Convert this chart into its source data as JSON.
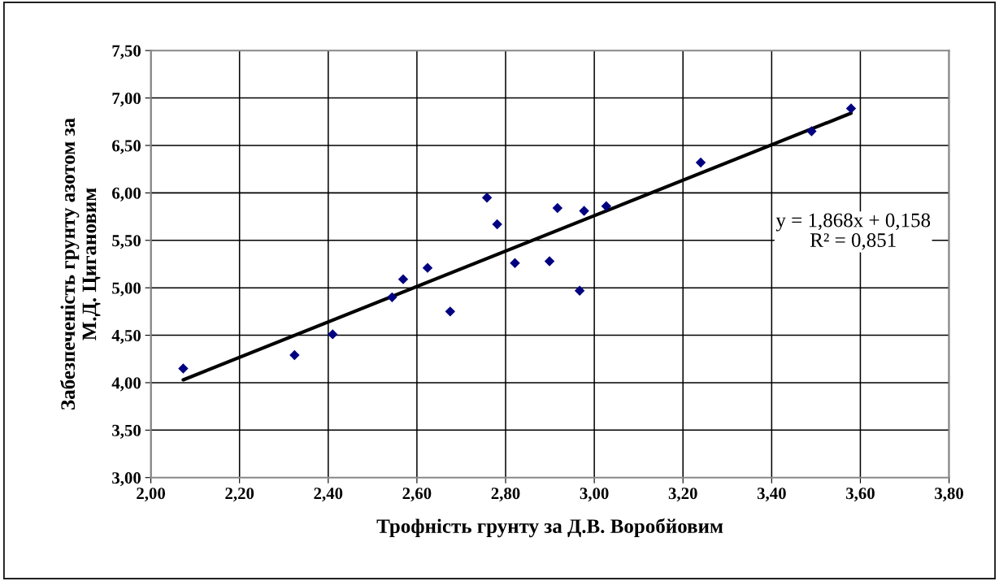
{
  "chart_data": {
    "type": "scatter",
    "xlabel": "Трофність грунту за Д.В. Воробйовим",
    "ylabel": "Забезпеченість грунту азотом за\nМ.Д. Цигановим",
    "series": [
      {
        "color": "#000080",
        "marker": "diamond",
        "x": [
          2.073,
          2.324,
          2.41,
          2.544,
          2.569,
          2.624,
          2.675,
          2.758,
          2.781,
          2.821,
          2.899,
          2.917,
          2.967,
          2.977,
          3.027,
          3.24,
          3.49,
          3.579
        ],
        "values": [
          4.15,
          4.29,
          4.51,
          4.9,
          5.09,
          5.21,
          4.75,
          5.95,
          5.67,
          5.26,
          5.28,
          5.84,
          4.97,
          5.81,
          5.86,
          6.32,
          6.65,
          6.89
        ]
      },
      {
        "type": "line",
        "color": "#000000",
        "marker": "none",
        "line_style": "solid",
        "x": [
          2.073,
          3.579
        ],
        "values": [
          4.03,
          6.84
        ]
      }
    ],
    "annotations": [
      "y = 1,868x + 0,158\nR² = 0,851"
    ],
    "xlim": [
      2.0,
      3.8
    ],
    "ylim": [
      3.0,
      7.5
    ],
    "xticks": [
      {
        "value": 2.0,
        "label": "2,00"
      },
      {
        "value": 2.2,
        "label": "2,20"
      },
      {
        "value": 2.4,
        "label": "2,40"
      },
      {
        "value": 2.6,
        "label": "2,60"
      },
      {
        "value": 2.8,
        "label": "2,80"
      },
      {
        "value": 3.0,
        "label": "3,00"
      },
      {
        "value": 3.2,
        "label": "3,20"
      },
      {
        "value": 3.4,
        "label": "3,40"
      },
      {
        "value": 3.6,
        "label": "3,60"
      },
      {
        "value": 3.8,
        "label": "3,80"
      }
    ],
    "yticks": [
      {
        "value": 3.0,
        "label": "3,00"
      },
      {
        "value": 3.5,
        "label": "3,50"
      },
      {
        "value": 4.0,
        "label": "4,00"
      },
      {
        "value": 4.5,
        "label": "4,50"
      },
      {
        "value": 5.0,
        "label": "5,00"
      },
      {
        "value": 5.5,
        "label": "5,50"
      },
      {
        "value": 6.0,
        "label": "6,00"
      },
      {
        "value": 6.5,
        "label": "6,50"
      },
      {
        "value": 7.0,
        "label": "7,00"
      },
      {
        "value": 7.5,
        "label": "7,50"
      }
    ],
    "grid": true,
    "legend": false
  }
}
